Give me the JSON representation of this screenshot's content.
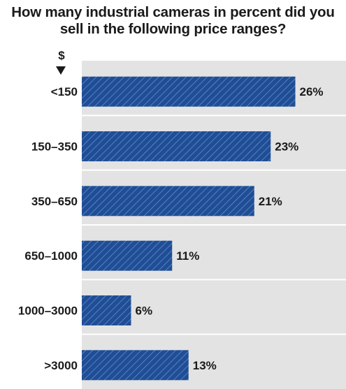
{
  "chart_data": {
    "type": "bar",
    "orientation": "horizontal",
    "title": "How many industrial cameras in percent did you sell in the following price ranges?",
    "unit_label": "$",
    "categories": [
      "<150",
      "150–350",
      "350–650",
      "650–1000",
      "1000–3000",
      ">3000"
    ],
    "values": [
      26,
      23,
      21,
      11,
      6,
      13
    ],
    "value_labels": [
      "26%",
      "23%",
      "21%",
      "11%",
      "6%",
      "13%"
    ],
    "xlim": [
      0,
      30
    ],
    "grid": false,
    "bar_color": "#1f4e96",
    "plot_background": "#e3e3e3"
  }
}
